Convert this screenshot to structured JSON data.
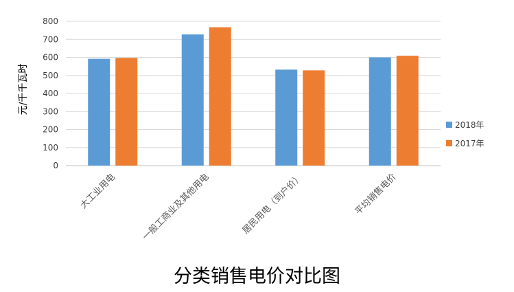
{
  "chart_data": {
    "type": "bar",
    "title": "分类销售电价对比图",
    "ylabel": "元/千千瓦时",
    "xlabel": "",
    "ylim": [
      0,
      800
    ],
    "yticks": [
      0,
      100,
      200,
      300,
      400,
      500,
      600,
      700,
      800
    ],
    "grid": true,
    "legend_position": "right",
    "categories": [
      "大工业用电",
      "一般工商业及其他用电",
      "居民用电（到户价）",
      "平均销售电价"
    ],
    "series": [
      {
        "name": "2018年",
        "values": [
          592,
          727,
          532,
          600
        ],
        "color": "#5B9BD5"
      },
      {
        "name": "2017年",
        "values": [
          597,
          767,
          528,
          609
        ],
        "color": "#ED7D31"
      }
    ]
  }
}
